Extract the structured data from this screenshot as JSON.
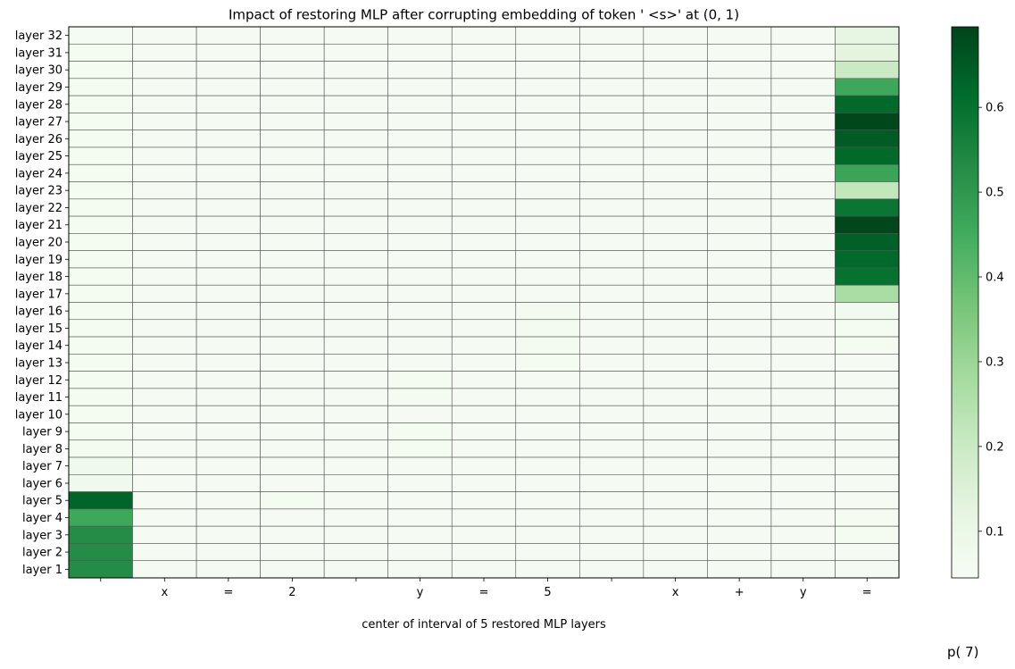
{
  "chart_data": {
    "type": "heatmap",
    "title": "Impact of restoring MLP after corrupting embedding of token ' <s>' at (0, 1)",
    "xlabel": "center of interval of 5 restored MLP layers",
    "ylabel": "",
    "x_tick_labels": [
      "",
      "x",
      "=",
      "2",
      "",
      "y",
      "=",
      "5",
      "",
      "x",
      "+",
      "y",
      "="
    ],
    "y_tick_labels": [
      "layer 32",
      "layer 31",
      "layer 30",
      "layer 29",
      "layer 28",
      "layer 27",
      "layer 26",
      "layer 25",
      "layer 24",
      "layer 23",
      "layer 22",
      "layer 21",
      "layer 20",
      "layer 19",
      "layer 18",
      "layer 17",
      "layer 16",
      "layer 15",
      "layer 14",
      "layer 13",
      "layer 12",
      "layer 11",
      "layer 10",
      "layer 9",
      "layer 8",
      "layer 7",
      "layer 6",
      "layer 5",
      "layer 4",
      "layer 3",
      "layer 2",
      "layer 1"
    ],
    "values": [
      [
        0.06,
        0.055,
        0.055,
        0.055,
        0.055,
        0.055,
        0.055,
        0.055,
        0.055,
        0.055,
        0.055,
        0.055,
        0.12
      ],
      [
        0.06,
        0.055,
        0.055,
        0.055,
        0.055,
        0.055,
        0.055,
        0.055,
        0.055,
        0.055,
        0.055,
        0.055,
        0.13
      ],
      [
        0.06,
        0.055,
        0.055,
        0.055,
        0.055,
        0.055,
        0.055,
        0.055,
        0.055,
        0.055,
        0.055,
        0.055,
        0.2
      ],
      [
        0.06,
        0.055,
        0.055,
        0.055,
        0.055,
        0.055,
        0.055,
        0.055,
        0.055,
        0.055,
        0.055,
        0.055,
        0.46
      ],
      [
        0.06,
        0.055,
        0.055,
        0.055,
        0.055,
        0.055,
        0.055,
        0.055,
        0.055,
        0.055,
        0.055,
        0.055,
        0.62
      ],
      [
        0.06,
        0.055,
        0.055,
        0.055,
        0.055,
        0.055,
        0.055,
        0.055,
        0.055,
        0.055,
        0.055,
        0.055,
        0.69
      ],
      [
        0.06,
        0.055,
        0.055,
        0.055,
        0.055,
        0.055,
        0.055,
        0.055,
        0.055,
        0.055,
        0.055,
        0.055,
        0.65
      ],
      [
        0.06,
        0.055,
        0.055,
        0.055,
        0.055,
        0.055,
        0.055,
        0.055,
        0.055,
        0.055,
        0.055,
        0.055,
        0.62
      ],
      [
        0.06,
        0.055,
        0.055,
        0.055,
        0.055,
        0.055,
        0.055,
        0.055,
        0.055,
        0.055,
        0.055,
        0.055,
        0.47
      ],
      [
        0.06,
        0.055,
        0.055,
        0.055,
        0.055,
        0.055,
        0.055,
        0.055,
        0.055,
        0.055,
        0.055,
        0.055,
        0.22
      ],
      [
        0.06,
        0.055,
        0.055,
        0.055,
        0.055,
        0.055,
        0.055,
        0.055,
        0.055,
        0.055,
        0.055,
        0.055,
        0.59
      ],
      [
        0.06,
        0.055,
        0.055,
        0.055,
        0.055,
        0.055,
        0.055,
        0.055,
        0.055,
        0.055,
        0.055,
        0.055,
        0.69
      ],
      [
        0.06,
        0.055,
        0.055,
        0.055,
        0.055,
        0.055,
        0.055,
        0.055,
        0.055,
        0.055,
        0.055,
        0.055,
        0.64
      ],
      [
        0.06,
        0.055,
        0.055,
        0.055,
        0.055,
        0.055,
        0.055,
        0.055,
        0.055,
        0.055,
        0.055,
        0.055,
        0.62
      ],
      [
        0.06,
        0.055,
        0.055,
        0.055,
        0.055,
        0.055,
        0.055,
        0.055,
        0.055,
        0.055,
        0.055,
        0.055,
        0.6
      ],
      [
        0.06,
        0.055,
        0.055,
        0.055,
        0.055,
        0.055,
        0.055,
        0.055,
        0.055,
        0.055,
        0.055,
        0.055,
        0.27
      ],
      [
        0.06,
        0.055,
        0.055,
        0.055,
        0.055,
        0.055,
        0.055,
        0.065,
        0.055,
        0.055,
        0.055,
        0.055,
        0.07
      ],
      [
        0.06,
        0.055,
        0.055,
        0.055,
        0.055,
        0.055,
        0.055,
        0.065,
        0.055,
        0.055,
        0.055,
        0.055,
        0.06
      ],
      [
        0.06,
        0.055,
        0.055,
        0.055,
        0.055,
        0.055,
        0.055,
        0.065,
        0.055,
        0.055,
        0.055,
        0.055,
        0.06
      ],
      [
        0.06,
        0.055,
        0.055,
        0.055,
        0.055,
        0.055,
        0.055,
        0.06,
        0.055,
        0.055,
        0.055,
        0.055,
        0.055
      ],
      [
        0.06,
        0.055,
        0.055,
        0.055,
        0.055,
        0.06,
        0.055,
        0.055,
        0.055,
        0.055,
        0.055,
        0.055,
        0.055
      ],
      [
        0.06,
        0.055,
        0.055,
        0.055,
        0.055,
        0.06,
        0.055,
        0.055,
        0.055,
        0.055,
        0.055,
        0.055,
        0.055
      ],
      [
        0.06,
        0.055,
        0.055,
        0.055,
        0.055,
        0.055,
        0.055,
        0.055,
        0.055,
        0.055,
        0.055,
        0.055,
        0.055
      ],
      [
        0.06,
        0.055,
        0.055,
        0.055,
        0.055,
        0.06,
        0.055,
        0.055,
        0.055,
        0.055,
        0.055,
        0.055,
        0.055
      ],
      [
        0.065,
        0.055,
        0.055,
        0.055,
        0.055,
        0.06,
        0.055,
        0.055,
        0.055,
        0.055,
        0.055,
        0.055,
        0.055
      ],
      [
        0.08,
        0.055,
        0.055,
        0.055,
        0.055,
        0.055,
        0.055,
        0.055,
        0.055,
        0.055,
        0.055,
        0.055,
        0.055
      ],
      [
        0.075,
        0.055,
        0.055,
        0.055,
        0.055,
        0.055,
        0.055,
        0.055,
        0.055,
        0.055,
        0.055,
        0.055,
        0.055
      ],
      [
        0.63,
        0.055,
        0.055,
        0.06,
        0.055,
        0.055,
        0.055,
        0.055,
        0.055,
        0.055,
        0.055,
        0.055,
        0.055
      ],
      [
        0.46,
        0.055,
        0.055,
        0.055,
        0.055,
        0.055,
        0.055,
        0.055,
        0.055,
        0.055,
        0.055,
        0.055,
        0.06
      ],
      [
        0.53,
        0.055,
        0.055,
        0.055,
        0.055,
        0.055,
        0.055,
        0.055,
        0.055,
        0.055,
        0.055,
        0.055,
        0.06
      ],
      [
        0.53,
        0.055,
        0.055,
        0.055,
        0.055,
        0.055,
        0.055,
        0.055,
        0.055,
        0.055,
        0.055,
        0.055,
        0.055
      ],
      [
        0.53,
        0.055,
        0.055,
        0.055,
        0.055,
        0.055,
        0.055,
        0.055,
        0.055,
        0.055,
        0.055,
        0.055,
        0.055
      ]
    ],
    "colormap": "Greens",
    "colorbar": {
      "range": [
        0.045,
        0.695
      ],
      "ticks": [
        0.1,
        0.2,
        0.3,
        0.4,
        0.5,
        0.6
      ],
      "tick_labels": [
        "0.1",
        "0.2",
        "0.3",
        "0.4",
        "0.5",
        "0.6"
      ]
    },
    "grid": true,
    "corner_label": "p( 7)"
  },
  "colors": {
    "grid_line": "#555555",
    "colormap_stops": [
      "#f7fcf5",
      "#e5f5e0",
      "#c7e9c0",
      "#a1d99b",
      "#74c476",
      "#41ab5d",
      "#238b45",
      "#006d2c",
      "#00441b"
    ]
  }
}
